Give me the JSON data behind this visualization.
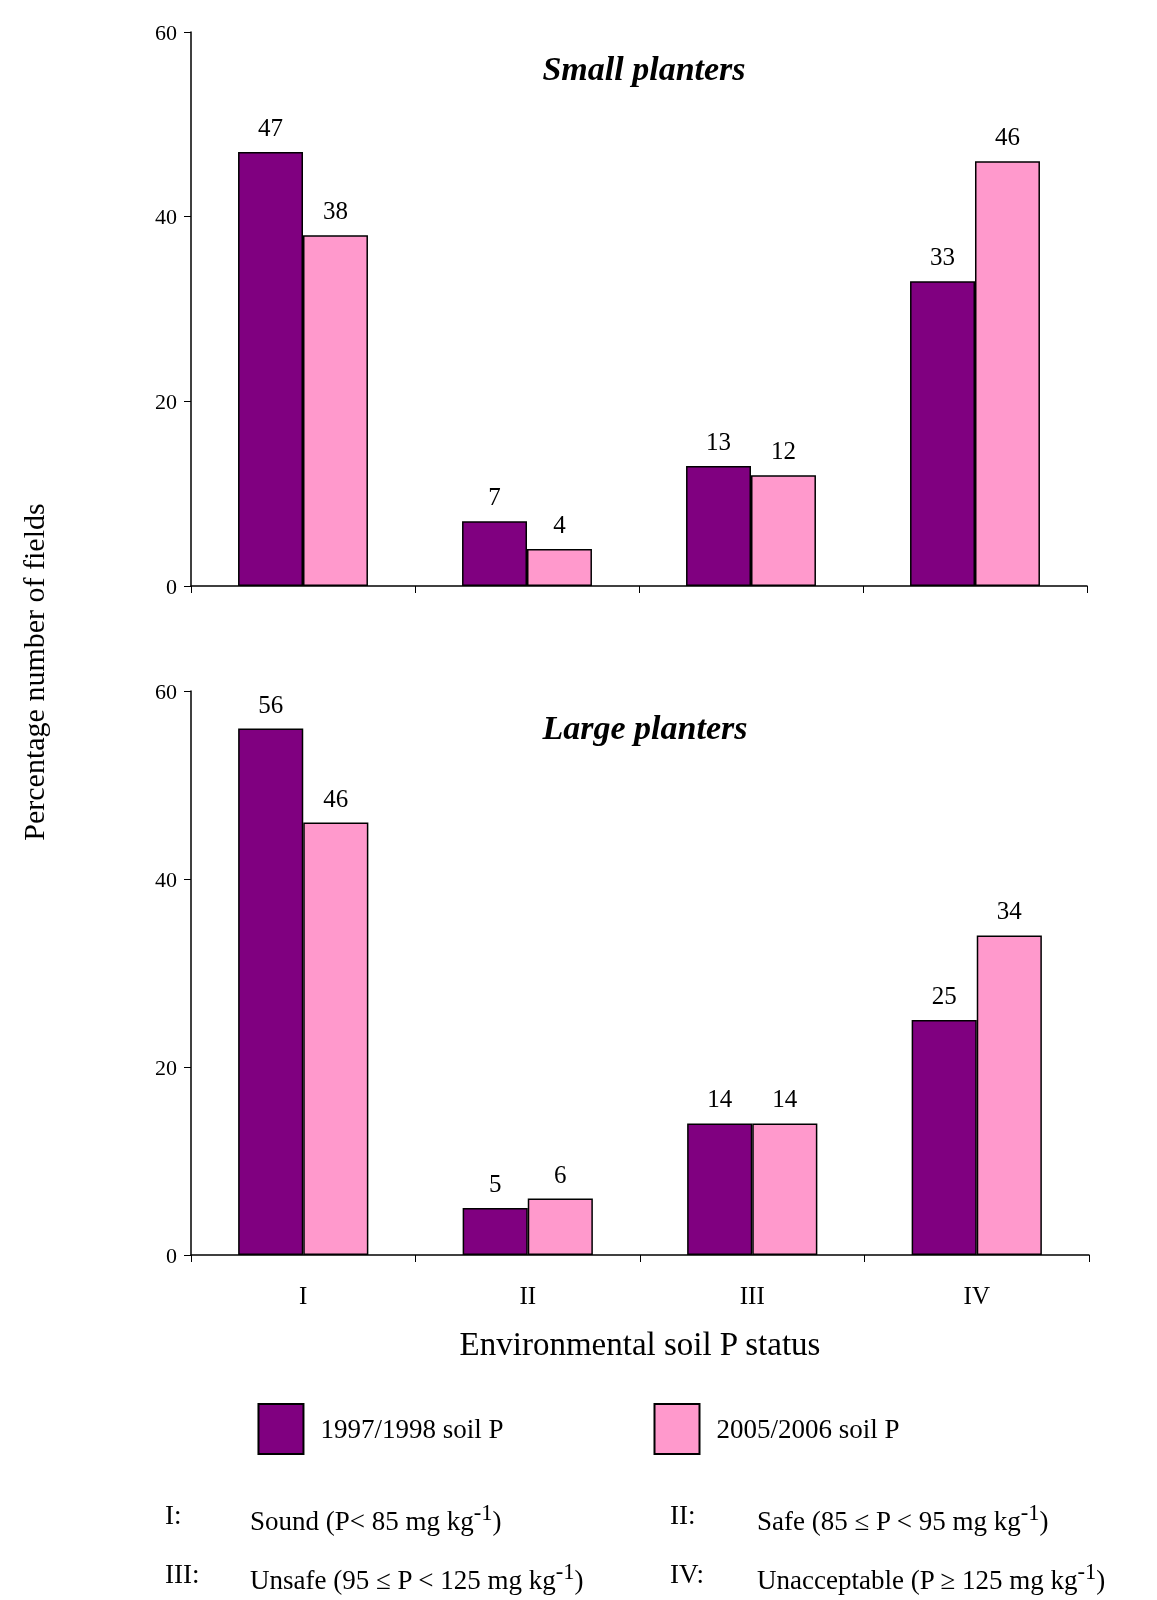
{
  "chart_data": [
    {
      "type": "bar",
      "title": "Small planters",
      "ylabel": "Percentage number of fields",
      "categories": [
        null,
        null,
        null,
        null
      ],
      "series": [
        {
          "color": "#800080",
          "values": [
            47,
            7,
            13,
            33
          ]
        },
        {
          "color": "#ff99cc",
          "values": [
            38,
            4,
            12,
            46
          ]
        }
      ],
      "ylim": [
        0,
        60
      ],
      "yticks": [
        0,
        20,
        40,
        60
      ],
      "grid": false,
      "legend": false,
      "tick_labels": "y",
      "data_labels": true
    },
    {
      "type": "bar",
      "title": "Large planters",
      "xlabel": "Environmental soil P status",
      "categories": [
        "I",
        "II",
        "III",
        "IV"
      ],
      "series": [
        {
          "name": "1997/1998 soil P",
          "color": "#800080",
          "values": [
            56,
            5,
            14,
            25
          ]
        },
        {
          "name": "2005/2006 soil P",
          "color": "#ff99cc",
          "values": [
            46,
            6,
            14,
            34
          ]
        }
      ],
      "ylim": [
        0,
        60
      ],
      "yticks": [
        0,
        20,
        40,
        60
      ],
      "grid": false,
      "legend": "bottom",
      "data_labels": true,
      "annotations": [
        "I: Sound (P< 85 mg kg$^{-1}$)",
        "II: Safe (85 ≤ P < 95 mg kg$^{-1}$)",
        "III: Unsafe (95 ≤ P < 125 mg kg$^{-1}$)",
        "IV: Unacceptable (P ≥ 125 mg kg$^{-1}$)"
      ]
    }
  ]
}
